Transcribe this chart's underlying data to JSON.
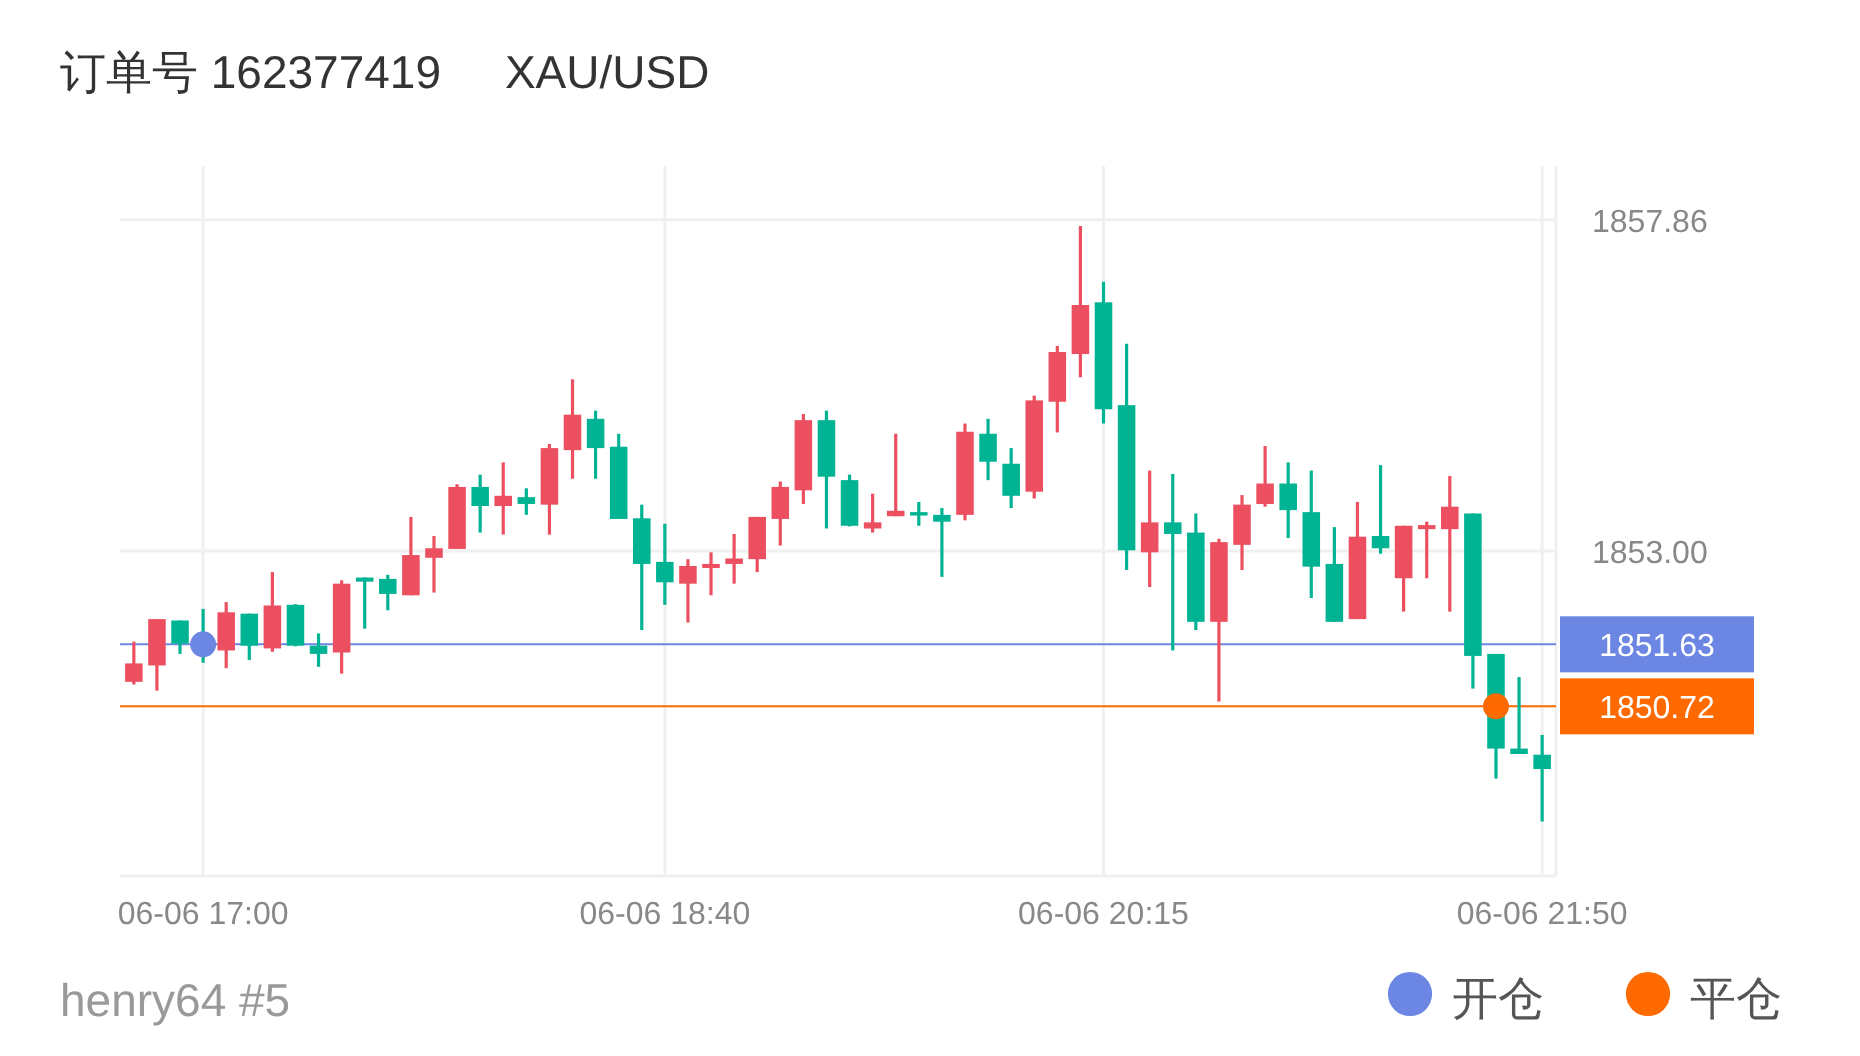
{
  "chart_data": {
    "type": "candlestick",
    "title": "订单号 162377419     XAU/USD",
    "categories": [
      null,
      null,
      null,
      "06-06 17:00",
      null,
      null,
      null,
      null,
      null,
      null,
      null,
      null,
      null,
      null,
      null,
      null,
      null,
      null,
      null,
      null,
      null,
      null,
      null,
      "06-06 18:40",
      null,
      null,
      null,
      null,
      null,
      null,
      null,
      null,
      null,
      null,
      null,
      null,
      null,
      null,
      null,
      null,
      null,
      null,
      "06-06 20:15",
      null,
      null,
      null,
      null,
      null,
      null,
      null,
      null,
      null,
      null,
      null,
      null,
      null,
      null,
      null,
      null,
      null,
      null,
      "06-06 21:50"
    ],
    "ohlc": [
      [
        1851.08,
        1851.67,
        1851.04,
        1851.35
      ],
      [
        1851.32,
        1852.0,
        1850.95,
        1852.0
      ],
      [
        1851.98,
        1851.98,
        1851.49,
        1851.64
      ],
      [
        1851.75,
        1852.15,
        1851.36,
        1851.66
      ],
      [
        1851.54,
        1852.25,
        1851.28,
        1852.1
      ],
      [
        1852.08,
        1852.08,
        1851.4,
        1851.61
      ],
      [
        1851.57,
        1852.69,
        1851.52,
        1852.2
      ],
      [
        1852.21,
        1852.22,
        1851.6,
        1851.61
      ],
      [
        1851.61,
        1851.79,
        1851.3,
        1851.49
      ],
      [
        1851.51,
        1852.57,
        1851.2,
        1852.52
      ],
      [
        1852.61,
        1852.61,
        1851.86,
        1852.55
      ],
      [
        1852.59,
        1852.65,
        1852.13,
        1852.37
      ],
      [
        1852.35,
        1853.5,
        1852.35,
        1852.94
      ],
      [
        1852.9,
        1853.22,
        1852.39,
        1853.04
      ],
      [
        1853.03,
        1853.98,
        1853.03,
        1853.94
      ],
      [
        1853.94,
        1854.12,
        1853.27,
        1853.66
      ],
      [
        1853.66,
        1854.3,
        1853.24,
        1853.81
      ],
      [
        1853.79,
        1853.92,
        1853.53,
        1853.69
      ],
      [
        1853.68,
        1854.57,
        1853.24,
        1854.51
      ],
      [
        1854.48,
        1855.52,
        1854.06,
        1855.0
      ],
      [
        1854.94,
        1855.06,
        1854.06,
        1854.51
      ],
      [
        1854.53,
        1854.72,
        1853.47,
        1853.47
      ],
      [
        1853.48,
        1853.68,
        1851.84,
        1852.81
      ],
      [
        1852.84,
        1853.4,
        1852.21,
        1852.54
      ],
      [
        1852.52,
        1852.88,
        1851.95,
        1852.78
      ],
      [
        1852.75,
        1852.98,
        1852.35,
        1852.81
      ],
      [
        1852.81,
        1853.25,
        1852.52,
        1852.89
      ],
      [
        1852.88,
        1853.5,
        1852.69,
        1853.5
      ],
      [
        1853.47,
        1854.02,
        1853.08,
        1853.94
      ],
      [
        1853.89,
        1855.01,
        1853.69,
        1854.92
      ],
      [
        1854.92,
        1855.06,
        1853.33,
        1854.09
      ],
      [
        1854.04,
        1854.12,
        1853.36,
        1853.37
      ],
      [
        1853.33,
        1853.84,
        1853.27,
        1853.42
      ],
      [
        1853.51,
        1854.72,
        1853.51,
        1853.59
      ],
      [
        1853.57,
        1853.72,
        1853.37,
        1853.52
      ],
      [
        1853.53,
        1853.63,
        1852.62,
        1853.43
      ],
      [
        1853.53,
        1854.87,
        1853.45,
        1854.75
      ],
      [
        1854.72,
        1854.94,
        1854.04,
        1854.31
      ],
      [
        1854.28,
        1854.51,
        1853.63,
        1853.81
      ],
      [
        1853.87,
        1855.28,
        1853.77,
        1855.21
      ],
      [
        1855.19,
        1856.01,
        1854.74,
        1855.92
      ],
      [
        1855.89,
        1857.77,
        1855.55,
        1856.61
      ],
      [
        1856.65,
        1856.95,
        1854.87,
        1855.08
      ],
      [
        1855.14,
        1856.04,
        1852.72,
        1853.01
      ],
      [
        1852.98,
        1854.18,
        1852.47,
        1853.42
      ],
      [
        1853.42,
        1854.13,
        1851.54,
        1853.25
      ],
      [
        1853.27,
        1853.55,
        1851.84,
        1851.96
      ],
      [
        1851.96,
        1853.18,
        1850.79,
        1853.13
      ],
      [
        1853.09,
        1853.82,
        1852.72,
        1853.68
      ],
      [
        1853.69,
        1854.54,
        1853.65,
        1853.99
      ],
      [
        1853.99,
        1854.3,
        1853.19,
        1853.6
      ],
      [
        1853.57,
        1854.18,
        1852.31,
        1852.77
      ],
      [
        1852.81,
        1853.35,
        1851.96,
        1851.96
      ],
      [
        1852.0,
        1853.72,
        1852.0,
        1853.21
      ],
      [
        1853.22,
        1854.26,
        1852.96,
        1853.04
      ],
      [
        1852.6,
        1853.37,
        1852.11,
        1853.37
      ],
      [
        1853.32,
        1853.43,
        1852.6,
        1853.38
      ],
      [
        1853.32,
        1854.1,
        1852.11,
        1853.65
      ],
      [
        1853.55,
        1853.55,
        1850.98,
        1851.46
      ],
      [
        1851.49,
        1851.49,
        1849.66,
        1850.1
      ],
      [
        1850.1,
        1851.15,
        1850.02,
        1850.02
      ],
      [
        1850.01,
        1850.3,
        1849.03,
        1849.8
      ]
    ],
    "colors": [
      "#ec5060",
      "#ec5060",
      "#00b393",
      "#00b393",
      "#ec5060",
      "#00b393",
      "#ec5060",
      "#00b393",
      "#00b393",
      "#ec5060",
      "#00b393",
      "#00b393",
      "#ec5060",
      "#ec5060",
      "#ec5060",
      "#00b393",
      "#ec5060",
      "#00b393",
      "#ec5060",
      "#ec5060",
      "#00b393",
      "#00b393",
      "#00b393",
      "#00b393",
      "#ec5060",
      "#ec5060",
      "#ec5060",
      "#ec5060",
      "#ec5060",
      "#ec5060",
      "#00b393",
      "#00b393",
      "#ec5060",
      "#ec5060",
      "#00b393",
      "#00b393",
      "#ec5060",
      "#00b393",
      "#00b393",
      "#ec5060",
      "#ec5060",
      "#ec5060",
      "#00b393",
      "#00b393",
      "#ec5060",
      "#00b393",
      "#00b393",
      "#ec5060",
      "#ec5060",
      "#ec5060",
      "#00b393",
      "#00b393",
      "#00b393",
      "#ec5060",
      "#00b393",
      "#ec5060",
      "#ec5060",
      "#ec5060",
      "#00b393",
      "#00b393",
      "#00b393",
      "#00b393"
    ],
    "series": [
      {
        "type": "scatter",
        "name": "开仓",
        "color": "#6b86e3",
        "values": [
          null,
          null,
          null,
          1851.63,
          null,
          null,
          null,
          null,
          null,
          null,
          null,
          null,
          null,
          null,
          null,
          null,
          null,
          null,
          null,
          null,
          null,
          null,
          null,
          null,
          null,
          null,
          null,
          null,
          null,
          null,
          null,
          null,
          null,
          null,
          null,
          null,
          null,
          null,
          null,
          null,
          null,
          null,
          null,
          null,
          null,
          null,
          null,
          null,
          null,
          null,
          null,
          null,
          null,
          null,
          null,
          null,
          null,
          null,
          null,
          null,
          null,
          null
        ]
      },
      {
        "type": "scatter",
        "name": "平仓",
        "color": "#ff6a00",
        "values": [
          null,
          null,
          null,
          null,
          null,
          null,
          null,
          null,
          null,
          null,
          null,
          null,
          null,
          null,
          null,
          null,
          null,
          null,
          null,
          null,
          null,
          null,
          null,
          null,
          null,
          null,
          null,
          null,
          null,
          null,
          null,
          null,
          null,
          null,
          null,
          null,
          null,
          null,
          null,
          null,
          null,
          null,
          null,
          null,
          null,
          null,
          null,
          null,
          null,
          null,
          null,
          null,
          null,
          null,
          null,
          null,
          null,
          null,
          null,
          1850.72,
          null,
          null
        ]
      }
    ],
    "ylim": [
      1848.23,
      1858.65
    ],
    "yticks": [
      1857.86,
      {
        "value": 1853,
        "label": "1853.00"
      }
    ],
    "ref_lines": [
      {
        "axis": "y",
        "value": 1851.63,
        "label": "1851.63",
        "color": "#6b86e3"
      },
      {
        "axis": "y",
        "value": 1850.72,
        "label": "1850.72",
        "color": "#ff6a00"
      }
    ],
    "grid": true,
    "legend": "bottom right",
    "marker": "circle",
    "annotations": [
      "henry64 #5"
    ]
  }
}
